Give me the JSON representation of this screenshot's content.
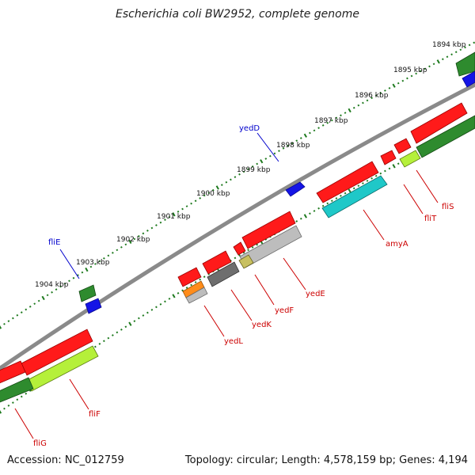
{
  "title": "Escherichia coli BW2952, complete genome",
  "accession": "Accession: NC_012759",
  "stats": "Topology: circular; Length: 4,578,159 bp; Genes: 4,194",
  "colors": {
    "backbone": "#8a8a8a",
    "tick": "#1e7a1e",
    "label_blue": "#0000cc",
    "label_red": "#cc0000",
    "red": "#ff1a1a",
    "green": "#2e8b2e",
    "lime": "#b5f03a",
    "cyan": "#1fc8c8",
    "blue": "#1414e6",
    "grey": "#bdbdbd",
    "darkgrey": "#6e6e6e",
    "orange": "#ff8c1a",
    "olive": "#c8c060"
  },
  "scale": {
    "ticks": [
      "1894 kbp",
      "1895 kbp",
      "1896 kbp",
      "1897 kbp",
      "1898 kbp",
      "1899 kbp",
      "1900 kbp",
      "1901 kbp",
      "1902 kbp",
      "1903 kbp",
      "1904 kbp"
    ]
  },
  "labels": {
    "yedD": "yedD",
    "fliE": "fliE",
    "fliS": "fliS",
    "fliT": "fliT",
    "amyA": "amyA",
    "yedE": "yedE",
    "yedF": "yedF",
    "yedK": "yedK",
    "yedL": "yedL",
    "fliF": "fliF",
    "fliG": "fliG"
  }
}
